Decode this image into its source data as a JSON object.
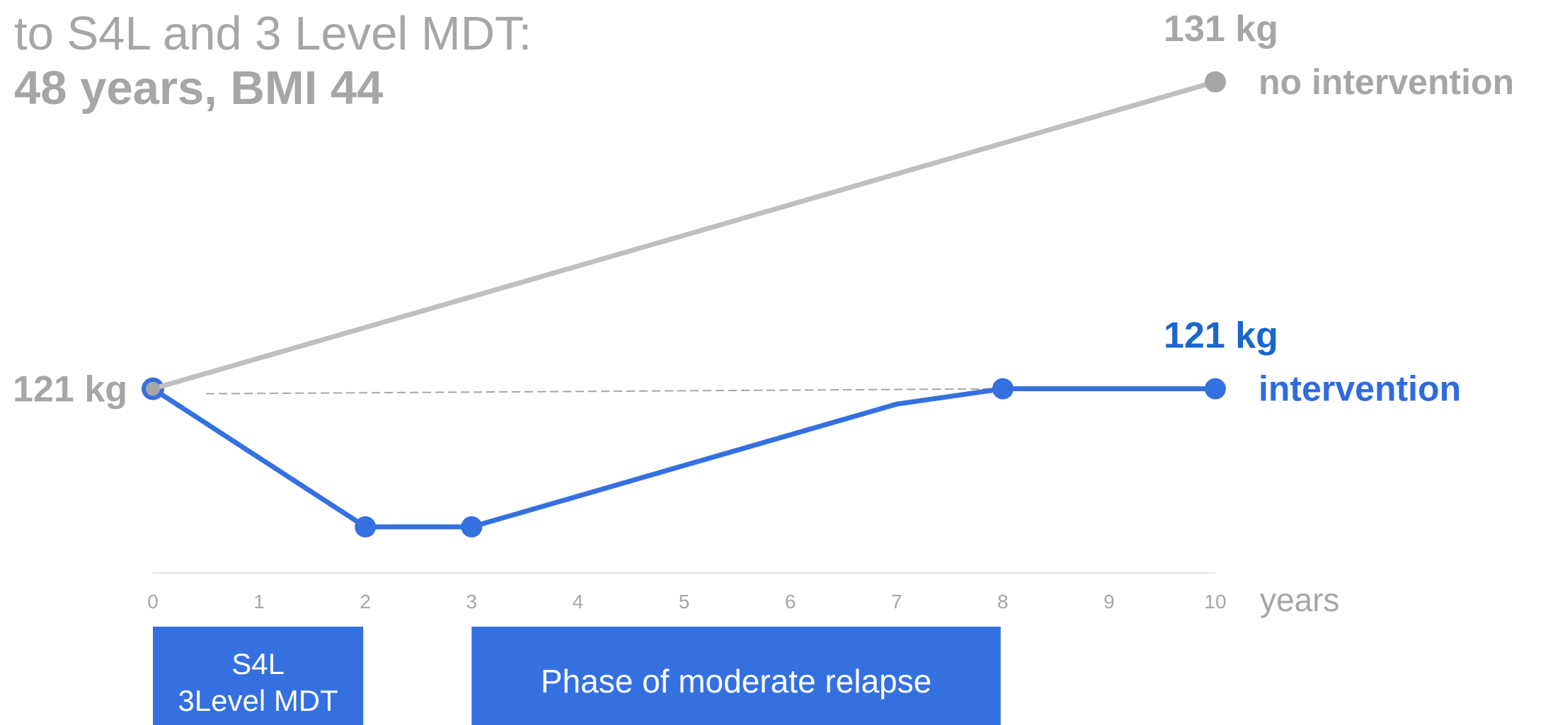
{
  "chart_data": {
    "type": "line",
    "title": "to S4L and 3 Level MDT:",
    "subtitle": "48 years, BMI 44",
    "x_label": "years",
    "start_label": "121 kg",
    "xlim": [
      0,
      10
    ],
    "xticks": [
      0,
      1,
      2,
      3,
      4,
      5,
      6,
      7,
      8,
      9,
      10
    ],
    "ylim": [
      115,
      133
    ],
    "series": [
      {
        "name": "intervention",
        "color": "#3570e0",
        "x": [
          0,
          2,
          3,
          7,
          8,
          10
        ],
        "values": [
          121,
          116.5,
          116.5,
          120.5,
          121,
          121
        ],
        "markers": [
          true,
          true,
          true,
          false,
          true,
          true
        ],
        "end_label": "121 kg"
      },
      {
        "name": "no intervention",
        "color": "#bfbfbf",
        "x": [
          0,
          10
        ],
        "values": [
          121,
          131
        ],
        "markers": [
          true,
          true
        ],
        "end_label": "131 kg"
      }
    ],
    "phases": [
      {
        "label": [
          "S4L",
          "3Level MDT"
        ],
        "start": 0,
        "end": 2
      },
      {
        "label": [
          "Phase of moderate relapse"
        ],
        "start": 3,
        "end": 8
      }
    ]
  }
}
